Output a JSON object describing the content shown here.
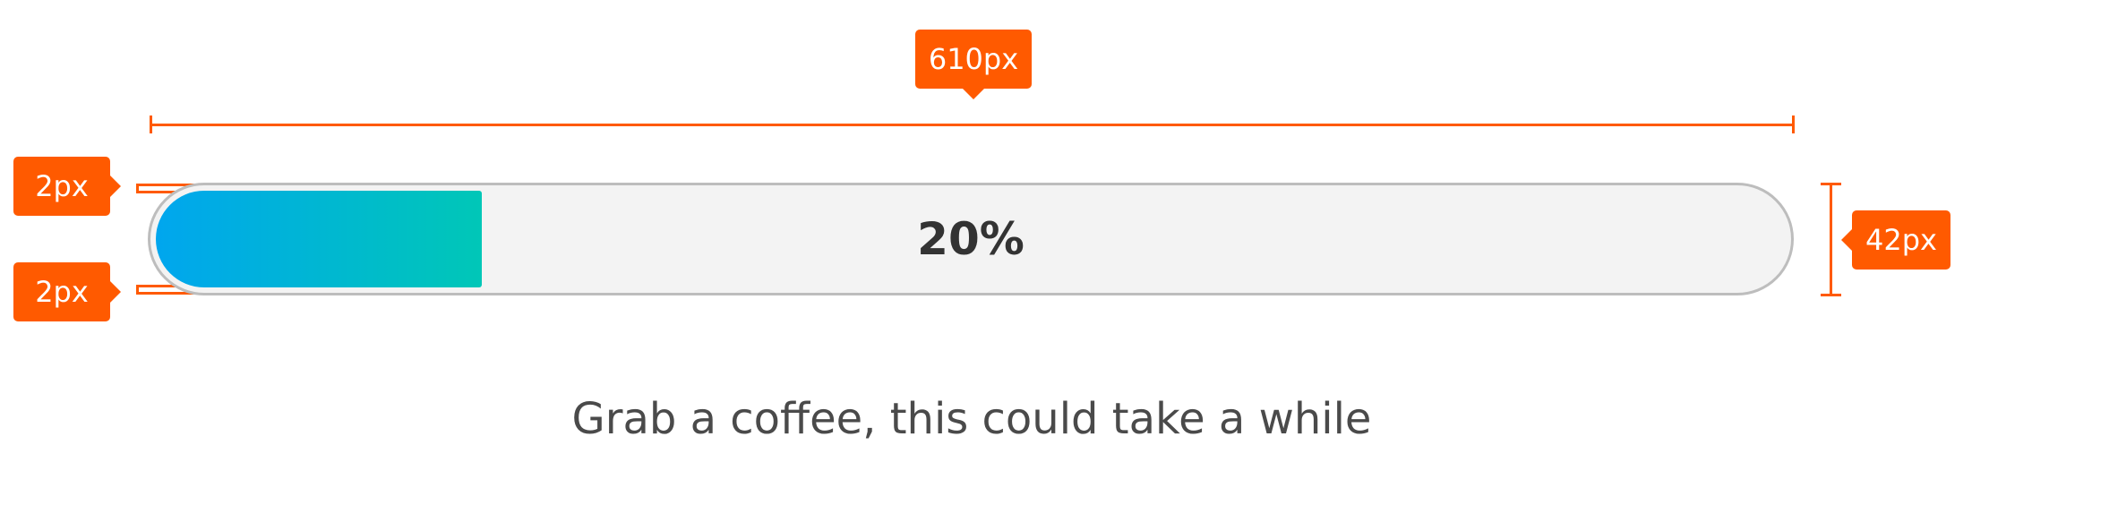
{
  "colors": {
    "accent": "#ff5a00",
    "track_background": "#f3f3f3",
    "track_border": "#bdbdbd",
    "fill_gradient_start": "#00a6ee",
    "fill_gradient_end": "#00c7b7"
  },
  "annotations": {
    "width_label": "610px",
    "top_padding_label": "2px",
    "bottom_padding_label": "2px",
    "height_label": "42px"
  },
  "progress": {
    "percent": 20,
    "label": "20%"
  },
  "caption": "Grab a coffee, this could take a while"
}
